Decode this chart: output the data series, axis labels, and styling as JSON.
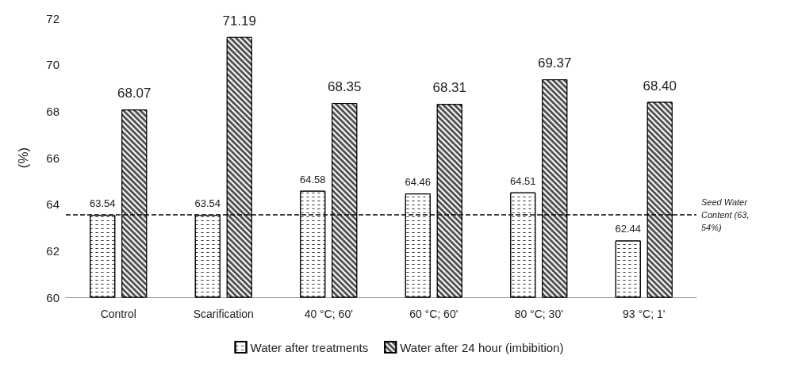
{
  "chart_data": {
    "type": "bar",
    "ylabel": "(%)",
    "categories": [
      "Control",
      "Scarification",
      "40 °C; 60'",
      "60 °C; 60'",
      "80 °C; 30'",
      "93 °C; 1'"
    ],
    "series": [
      {
        "name": "Water after treatments",
        "color": "#ffffff",
        "values": [
          63.54,
          63.54,
          64.58,
          64.46,
          64.51,
          62.44
        ],
        "value_labels": [
          "63.54",
          "63.54",
          "64.58",
          "64.46",
          "64.51",
          "62.44"
        ]
      },
      {
        "name": "Water after 24 hour (imbibition)",
        "color": "#555555",
        "values": [
          68.07,
          71.19,
          68.35,
          68.31,
          69.37,
          68.4
        ],
        "value_labels": [
          "68.07",
          "71.19",
          "68.35",
          "68.31",
          "69.37",
          "68.40"
        ]
      }
    ],
    "ylim": [
      60,
      72
    ],
    "yticks": [
      60,
      62,
      64,
      66,
      68,
      70,
      72
    ],
    "grid": false,
    "legend": "bottom",
    "ref_lines": [
      {
        "axis": "y",
        "value": 63.54,
        "label": "Seed Water Content (63,54%)",
        "line_style": "dashed",
        "color": "#000000"
      }
    ]
  }
}
